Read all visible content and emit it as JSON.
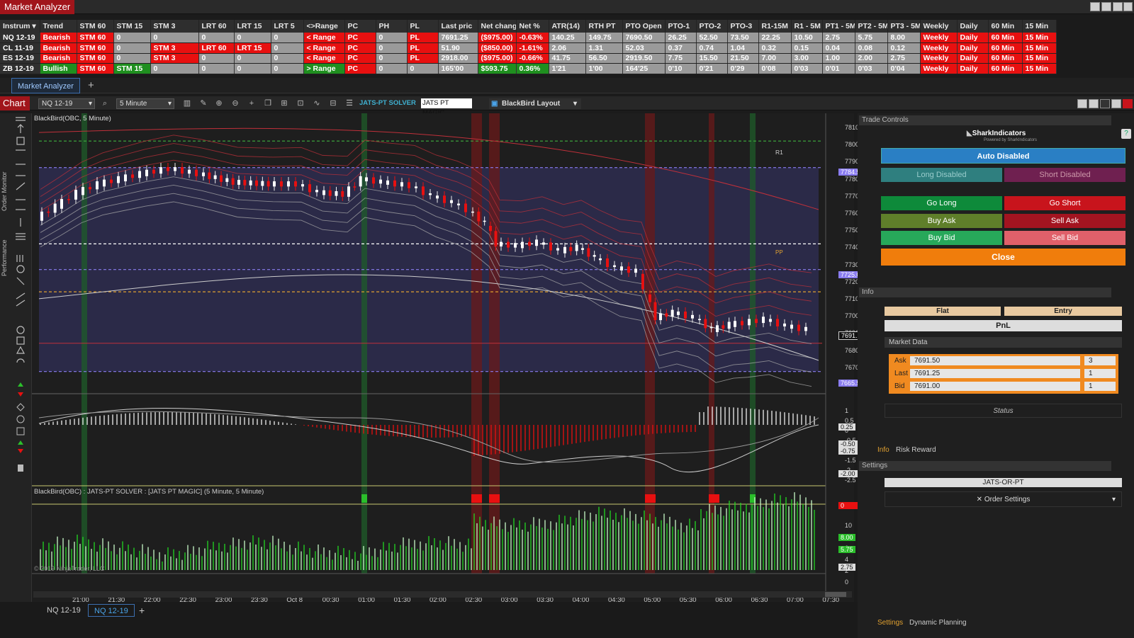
{
  "window": {
    "title": "Market Analyzer"
  },
  "market_analyzer": {
    "columns": [
      "Instrum ▾",
      "Trend",
      "STM 60",
      "STM 15",
      "STM 3",
      "LRT 60",
      "LRT 15",
      "LRT 5",
      "<>Range",
      "PC",
      "PH",
      "PL",
      "Last pric",
      "Net chang",
      "Net %",
      "ATR(14)",
      "RTH PT",
      "PTO Open",
      "PTO-1",
      "PTO-2",
      "PTO-3",
      "R1-15M",
      "R1 - 5M",
      "PT1 - 5M",
      "PT2 - 5M",
      "PT3 - 5M",
      "Weekly",
      "Daily",
      "60 Min",
      "15 Min"
    ],
    "rows": [
      [
        "NQ 12-19",
        "Bearish",
        "STM 60",
        "0",
        "0",
        "0",
        "0",
        "0",
        "< Range",
        "PC",
        "0",
        "PL",
        "7691.25",
        "($975.00)",
        "-0.63%",
        "140.25",
        "149.75",
        "7690.50",
        "26.25",
        "52.50",
        "73.50",
        "22.25",
        "10.50",
        "2.75",
        "5.75",
        "8.00",
        "Weekly",
        "Daily",
        "60 Min",
        "15 Min"
      ],
      [
        "CL 11-19",
        "Bearish",
        "STM 60",
        "0",
        "STM 3",
        "LRT 60",
        "LRT 15",
        "0",
        "< Range",
        "PC",
        "0",
        "PL",
        "51.90",
        "($850.00)",
        "-1.61%",
        "2.06",
        "1.31",
        "52.03",
        "0.37",
        "0.74",
        "1.04",
        "0.32",
        "0.15",
        "0.04",
        "0.08",
        "0.12",
        "Weekly",
        "Daily",
        "60 Min",
        "15 Min"
      ],
      [
        "ES 12-19",
        "Bearish",
        "STM 60",
        "0",
        "STM 3",
        "0",
        "0",
        "0",
        "< Range",
        "PC",
        "0",
        "PL",
        "2918.00",
        "($975.00)",
        "-0.66%",
        "41.75",
        "56.50",
        "2919.50",
        "7.75",
        "15.50",
        "21.50",
        "7.00",
        "3.00",
        "1.00",
        "2.00",
        "2.75",
        "Weekly",
        "Daily",
        "60 Min",
        "15 Min"
      ],
      [
        "ZB 12-19",
        "Bullish",
        "STM 60",
        "STM 15",
        "0",
        "0",
        "0",
        "0",
        "> Range",
        "PC",
        "0",
        "0",
        "165'00",
        "$593.75",
        "0.36%",
        "1'21",
        "1'00",
        "164'25",
        "0'10",
        "0'21",
        "0'29",
        "0'08",
        "0'03",
        "0'01",
        "0'03",
        "0'04",
        "Weekly",
        "Daily",
        "60 Min",
        "15 Min"
      ]
    ],
    "tab": "Market Analyzer",
    "add_tab": "+"
  },
  "chart": {
    "tag": "Chart",
    "instrument": "NQ 12-19",
    "interval": "5 Minute",
    "strategy1": "JATS-PT SOLVER",
    "strategy2": "JATS PT MAGIC",
    "layout": "BlackBird Layout",
    "title": "BlackBird(OBC, 5 Minute)",
    "sub_title": "BlackBird(OBC) : JATS-PT SOLVER : [JATS PT MAGIC] (5 Minute, 5 Minute)",
    "copyright": "© 2019 NinjaTrader, LLC",
    "r1": "R1",
    "pp": "PP",
    "left_tabs": [
      "Order Monitor",
      "Performance"
    ],
    "price_ticks": [
      "7810.00",
      "7800.00",
      "7790.00",
      "7780.00",
      "7770.00",
      "7760.00",
      "7750.00",
      "7740.00",
      "7730.00",
      "7720.00",
      "7710.00",
      "7700.00",
      "7690.00",
      "7680.00",
      "7670.00",
      "7660.00"
    ],
    "price_tags": {
      "upper": "7784.50",
      "mid": "7725.00",
      "last": "7691.25",
      "lower": "7665.50"
    },
    "osc_ticks": [
      "1",
      "0.5",
      "0",
      "-0.5",
      "-1",
      "-1.5",
      "-2",
      "-2.5"
    ],
    "osc_tags": [
      "0.25",
      "-0.50",
      "-0.75",
      "-2.00"
    ],
    "signal_tag": "0",
    "vol_ticks": [
      "10",
      "8",
      "6",
      "4",
      "2",
      "0"
    ],
    "vol_tags": [
      "8.00",
      "5.75",
      "2.75"
    ],
    "time_labels": [
      "21:00",
      "21:30",
      "22:00",
      "22:30",
      "23:00",
      "23:30",
      "Oct 8",
      "00:30",
      "01:00",
      "01:30",
      "02:00",
      "02:30",
      "03:00",
      "03:30",
      "04:00",
      "04:30",
      "05:00",
      "05:30",
      "06:00",
      "06:30",
      "07:00",
      "07:30"
    ],
    "bottom_tabs": [
      "NQ 12-19",
      "NQ 12-19"
    ],
    "bottom_add": "+"
  },
  "trade_controls": {
    "header": "Trade Controls",
    "brand": "SharkIndicators",
    "brand_sub": "Powered by SharkIndicators",
    "auto": "Auto Disabled",
    "long_disabled": "Long Disabled",
    "short_disabled": "Short Disabled",
    "go_long": "Go Long",
    "go_short": "Go Short",
    "buy_ask": "Buy Ask",
    "sell_ask": "Sell Ask",
    "buy_bid": "Buy Bid",
    "sell_bid": "Sell Bid",
    "close": "Close"
  },
  "info": {
    "header": "Info",
    "flat": "Flat",
    "entry": "Entry",
    "pnl": "PnL",
    "market_data": "Market Data",
    "ask_label": "Ask",
    "ask": "7691.50",
    "ask_size": "3",
    "last_label": "Last",
    "last": "7691.25",
    "last_size": "1",
    "bid_label": "Bid",
    "bid": "7691.00",
    "bid_size": "1",
    "status": "Status",
    "tab_info": "Info",
    "tab_rr": "Risk Reward"
  },
  "settings": {
    "header": "Settings",
    "profile": "JATS-OR-PT",
    "order_settings": "Order Settings",
    "tab_settings": "Settings",
    "tab_dp": "Dynamic Planning"
  },
  "colors": {
    "accent_red": "#a1151b",
    "bear": "#e81010",
    "bull": "#1f8f1f",
    "long": "#0e8a3a",
    "short": "#c8141c",
    "close": "#f07d0c",
    "auto": "#2a7fc4"
  }
}
